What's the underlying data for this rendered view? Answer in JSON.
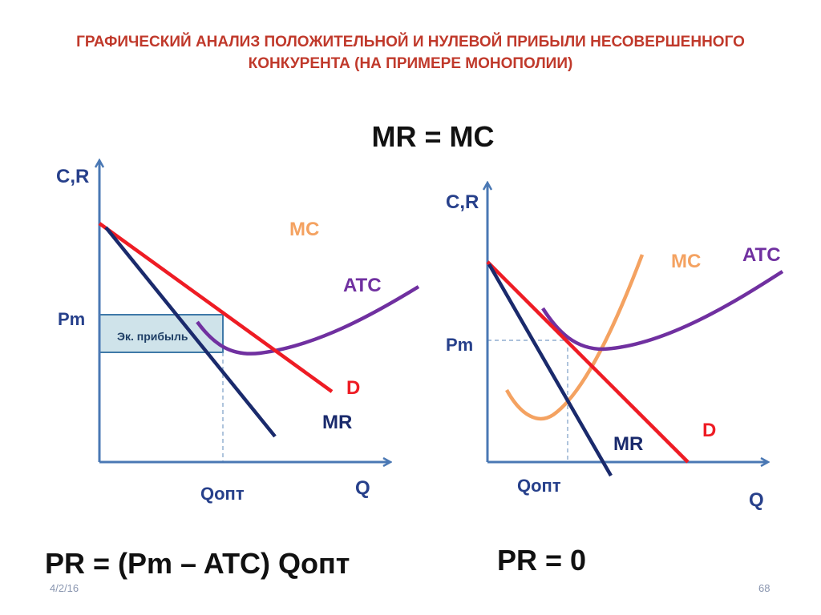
{
  "title": {
    "line1": "ГРАФИЧЕСКИЙ АНАЛИЗ ПОЛОЖИТЕЛЬНОЙ И НУЛЕВОЙ ПРИБЫЛИ НЕСОВЕРШЕННОГО",
    "line2": "КОНКУРЕНТА (НА ПРИМЕРЕ МОНОПОЛИИ)"
  },
  "rule": "MR = MC",
  "left_graph": {
    "y_axis": "C,R",
    "x_axis": "Q",
    "price_label": "Pm",
    "quantity_label": "Qопт",
    "profit_box": "Эк. прибыль",
    "curves": {
      "mc": "MC",
      "atc": "ATC",
      "demand": "D",
      "mr": "MR"
    },
    "formula": "PR = (Pm – ATC) Qопт"
  },
  "right_graph": {
    "y_axis": "C,R",
    "x_axis": "Q",
    "price_label": "Pm",
    "quantity_label": "Qопт",
    "curves": {
      "mc": "MC",
      "atc": "ATC",
      "demand": "D",
      "mr": "MR"
    },
    "formula": "PR = 0"
  },
  "colors": {
    "title": "#c0392b",
    "axis": "#4a78b4",
    "axis_label": "#27408b",
    "demand": "#ee1c24",
    "mr": "#1a2a6c",
    "atc": "#7030a0",
    "mc": "#f4a261",
    "profit_fill": "#cfe3ea",
    "profit_border": "#3f79a8"
  },
  "footer": {
    "date": "4/2/16",
    "page": "68"
  }
}
